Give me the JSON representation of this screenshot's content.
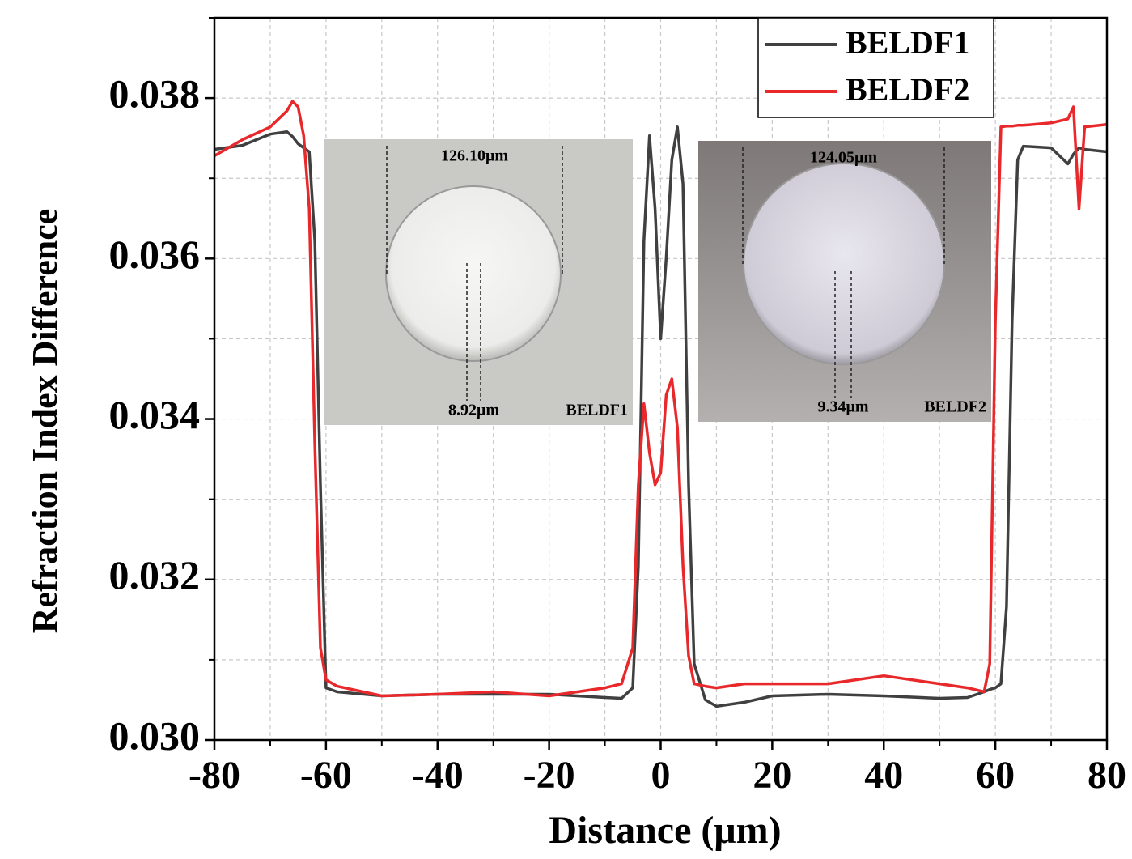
{
  "chart_data": {
    "type": "line",
    "x_label": "Distance (μm)",
    "y_label": "Refraction Index Difference",
    "x": [
      -80,
      -75,
      -70,
      -67,
      -66,
      -65,
      -64,
      -63,
      -62,
      -61,
      -60,
      -58,
      -50,
      -40,
      -30,
      -20,
      -10,
      -7,
      -5,
      -4,
      -3,
      -2,
      -1,
      0,
      1,
      2,
      3,
      4,
      5,
      6,
      8,
      10,
      15,
      20,
      30,
      40,
      50,
      55,
      58,
      59,
      60,
      61,
      62,
      63,
      64,
      65,
      70,
      73,
      74,
      75,
      76,
      80
    ],
    "series": [
      {
        "name": "BELDF1",
        "color": "#404040",
        "values": [
          0.03736,
          0.03741,
          0.03755,
          0.03758,
          0.03752,
          0.03743,
          0.03738,
          0.03733,
          0.03622,
          0.03318,
          0.03065,
          0.0306,
          0.03055,
          0.03057,
          0.03057,
          0.03057,
          0.03053,
          0.03052,
          0.03065,
          0.03217,
          0.03622,
          0.03753,
          0.03662,
          0.035,
          0.03601,
          0.03723,
          0.03764,
          0.03693,
          0.03318,
          0.03095,
          0.0305,
          0.03042,
          0.03047,
          0.03055,
          0.03057,
          0.03055,
          0.03052,
          0.03053,
          0.0306,
          0.03063,
          0.03065,
          0.0307,
          0.03166,
          0.03521,
          0.03723,
          0.0374,
          0.03738,
          0.03718,
          0.0373,
          0.03738,
          0.03736,
          0.03733
        ]
      },
      {
        "name": "BELDF2",
        "color": "#e8282b",
        "values": [
          0.03728,
          0.03748,
          0.03764,
          0.03784,
          0.03796,
          0.03789,
          0.03753,
          0.03662,
          0.03369,
          0.03115,
          0.03075,
          0.03067,
          0.03055,
          0.03057,
          0.0306,
          0.03055,
          0.03065,
          0.0307,
          0.03115,
          0.03318,
          0.03419,
          0.03358,
          0.03318,
          0.03333,
          0.0343,
          0.0345,
          0.03389,
          0.03217,
          0.03105,
          0.0307,
          0.03067,
          0.03065,
          0.0307,
          0.0307,
          0.0307,
          0.0308,
          0.0307,
          0.03065,
          0.0306,
          0.03095,
          0.03521,
          0.03764,
          0.03765,
          0.03765,
          0.03766,
          0.03766,
          0.03769,
          0.03774,
          0.03789,
          0.03662,
          0.03764,
          0.03767
        ]
      }
    ],
    "xlim": [
      -80,
      80
    ],
    "ylim": [
      0.03,
      0.039
    ],
    "xticks": [
      -80,
      -60,
      -40,
      -20,
      0,
      20,
      40,
      60,
      80
    ],
    "yticks": [
      {
        "value": 0.03,
        "label": "0.030"
      },
      {
        "value": 0.032,
        "label": "0.032"
      },
      {
        "value": 0.034,
        "label": "0.034"
      },
      {
        "value": 0.036,
        "label": "0.036"
      },
      {
        "value": 0.038,
        "label": "0.038"
      }
    ],
    "xminorticks": [
      -70,
      -50,
      -30,
      -10,
      10,
      30,
      50,
      70
    ],
    "yminorticks": [
      0.031,
      0.033,
      0.035,
      0.037,
      0.039
    ],
    "grid": true,
    "legend": "top-right",
    "insets": [
      {
        "diameter_label": "126.10μm",
        "core_label": "8.92μm",
        "name": "BELDF1"
      },
      {
        "diameter_label": "124.05μm",
        "core_label": "9.34μm",
        "name": "BELDF2"
      }
    ]
  }
}
